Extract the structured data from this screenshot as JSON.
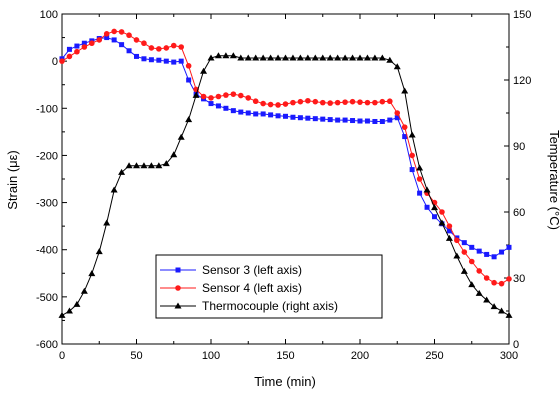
{
  "chart_data": {
    "type": "line",
    "xlabel": "Time (min)",
    "ylabel_left": "Strain (με)",
    "ylabel_right": "Temperature (°C)",
    "xlim": [
      0,
      300
    ],
    "ylim_left": [
      -600,
      100
    ],
    "ylim_right": [
      0,
      150
    ],
    "x_ticks": [
      "0",
      "50",
      "100",
      "150",
      "200",
      "250",
      "300"
    ],
    "y_left_ticks": [
      "100",
      "0",
      "-100",
      "-200",
      "-300",
      "-400",
      "-500",
      "-600"
    ],
    "y_right_ticks": [
      "150",
      "120",
      "90",
      "60",
      "30",
      "0"
    ],
    "grid": false,
    "legend_position": "lower-left-center",
    "series": [
      {
        "name": "Sensor 3 (left axis)",
        "axis": "left",
        "color": "#1a1aff",
        "marker": "square",
        "points": [
          [
            0,
            5
          ],
          [
            5,
            25
          ],
          [
            10,
            32
          ],
          [
            15,
            38
          ],
          [
            20,
            43
          ],
          [
            25,
            48
          ],
          [
            30,
            50
          ],
          [
            35,
            45
          ],
          [
            40,
            35
          ],
          [
            45,
            22
          ],
          [
            50,
            10
          ],
          [
            55,
            5
          ],
          [
            60,
            3
          ],
          [
            65,
            2
          ],
          [
            70,
            0
          ],
          [
            75,
            -2
          ],
          [
            80,
            0
          ],
          [
            85,
            -40
          ],
          [
            90,
            -70
          ],
          [
            95,
            -80
          ],
          [
            100,
            -90
          ],
          [
            105,
            -95
          ],
          [
            110,
            -100
          ],
          [
            115,
            -105
          ],
          [
            120,
            -108
          ],
          [
            125,
            -110
          ],
          [
            130,
            -112
          ],
          [
            135,
            -112
          ],
          [
            140,
            -114
          ],
          [
            145,
            -116
          ],
          [
            150,
            -117
          ],
          [
            155,
            -119
          ],
          [
            160,
            -120
          ],
          [
            165,
            -121
          ],
          [
            170,
            -122
          ],
          [
            175,
            -123
          ],
          [
            180,
            -124
          ],
          [
            185,
            -125
          ],
          [
            190,
            -125
          ],
          [
            195,
            -126
          ],
          [
            200,
            -127
          ],
          [
            205,
            -127
          ],
          [
            210,
            -128
          ],
          [
            215,
            -128
          ],
          [
            220,
            -125
          ],
          [
            225,
            -120
          ],
          [
            230,
            -160
          ],
          [
            235,
            -230
          ],
          [
            240,
            -280
          ],
          [
            245,
            -310
          ],
          [
            250,
            -330
          ],
          [
            255,
            -345
          ],
          [
            260,
            -360
          ],
          [
            265,
            -375
          ],
          [
            270,
            -385
          ],
          [
            275,
            -395
          ],
          [
            280,
            -403
          ],
          [
            285,
            -410
          ],
          [
            290,
            -415
          ],
          [
            295,
            -405
          ],
          [
            300,
            -395
          ]
        ]
      },
      {
        "name": "Sensor 4 (left axis)",
        "axis": "left",
        "color": "#ff1a1a",
        "marker": "circle",
        "points": [
          [
            0,
            0
          ],
          [
            5,
            10
          ],
          [
            10,
            20
          ],
          [
            15,
            30
          ],
          [
            20,
            38
          ],
          [
            25,
            45
          ],
          [
            30,
            58
          ],
          [
            35,
            63
          ],
          [
            40,
            62
          ],
          [
            45,
            55
          ],
          [
            50,
            45
          ],
          [
            55,
            38
          ],
          [
            60,
            28
          ],
          [
            65,
            26
          ],
          [
            70,
            28
          ],
          [
            75,
            33
          ],
          [
            80,
            30
          ],
          [
            85,
            -10
          ],
          [
            90,
            -60
          ],
          [
            95,
            -75
          ],
          [
            100,
            -78
          ],
          [
            105,
            -75
          ],
          [
            110,
            -72
          ],
          [
            115,
            -70
          ],
          [
            120,
            -73
          ],
          [
            125,
            -78
          ],
          [
            130,
            -85
          ],
          [
            135,
            -90
          ],
          [
            140,
            -92
          ],
          [
            145,
            -93
          ],
          [
            150,
            -91
          ],
          [
            155,
            -88
          ],
          [
            160,
            -86
          ],
          [
            165,
            -84
          ],
          [
            170,
            -86
          ],
          [
            175,
            -88
          ],
          [
            180,
            -89
          ],
          [
            185,
            -88
          ],
          [
            190,
            -87
          ],
          [
            195,
            -86
          ],
          [
            200,
            -87
          ],
          [
            205,
            -88
          ],
          [
            210,
            -88
          ],
          [
            215,
            -86
          ],
          [
            220,
            -85
          ],
          [
            225,
            -110
          ],
          [
            230,
            -140
          ],
          [
            235,
            -200
          ],
          [
            240,
            -250
          ],
          [
            245,
            -280
          ],
          [
            250,
            -300
          ],
          [
            255,
            -320
          ],
          [
            260,
            -350
          ],
          [
            265,
            -380
          ],
          [
            270,
            -405
          ],
          [
            275,
            -425
          ],
          [
            280,
            -445
          ],
          [
            285,
            -460
          ],
          [
            290,
            -470
          ],
          [
            295,
            -472
          ],
          [
            300,
            -462
          ]
        ]
      },
      {
        "name": "Thermocouple (right axis)",
        "axis": "right",
        "color": "#000000",
        "marker": "triangle",
        "points": [
          [
            0,
            13
          ],
          [
            5,
            15
          ],
          [
            10,
            18
          ],
          [
            15,
            24
          ],
          [
            20,
            32
          ],
          [
            25,
            42
          ],
          [
            30,
            55
          ],
          [
            35,
            70
          ],
          [
            40,
            78
          ],
          [
            45,
            81
          ],
          [
            50,
            81
          ],
          [
            55,
            81
          ],
          [
            60,
            81
          ],
          [
            65,
            81
          ],
          [
            70,
            82
          ],
          [
            75,
            86
          ],
          [
            80,
            94
          ],
          [
            85,
            102
          ],
          [
            90,
            113
          ],
          [
            95,
            124
          ],
          [
            100,
            130
          ],
          [
            105,
            131
          ],
          [
            110,
            131
          ],
          [
            115,
            131
          ],
          [
            120,
            130
          ],
          [
            125,
            130
          ],
          [
            130,
            130
          ],
          [
            135,
            130
          ],
          [
            140,
            130
          ],
          [
            145,
            130
          ],
          [
            150,
            130
          ],
          [
            155,
            130
          ],
          [
            160,
            130
          ],
          [
            165,
            130
          ],
          [
            170,
            130
          ],
          [
            175,
            130
          ],
          [
            180,
            130
          ],
          [
            185,
            130
          ],
          [
            190,
            130
          ],
          [
            195,
            130
          ],
          [
            200,
            130
          ],
          [
            205,
            130
          ],
          [
            210,
            130
          ],
          [
            215,
            130
          ],
          [
            220,
            129
          ],
          [
            225,
            126
          ],
          [
            230,
            115
          ],
          [
            235,
            95
          ],
          [
            240,
            80
          ],
          [
            245,
            70
          ],
          [
            250,
            62
          ],
          [
            255,
            55
          ],
          [
            260,
            48
          ],
          [
            265,
            40
          ],
          [
            270,
            33
          ],
          [
            275,
            27
          ],
          [
            280,
            23
          ],
          [
            285,
            20
          ],
          [
            290,
            17
          ],
          [
            295,
            15
          ],
          [
            300,
            13
          ]
        ]
      }
    ]
  }
}
